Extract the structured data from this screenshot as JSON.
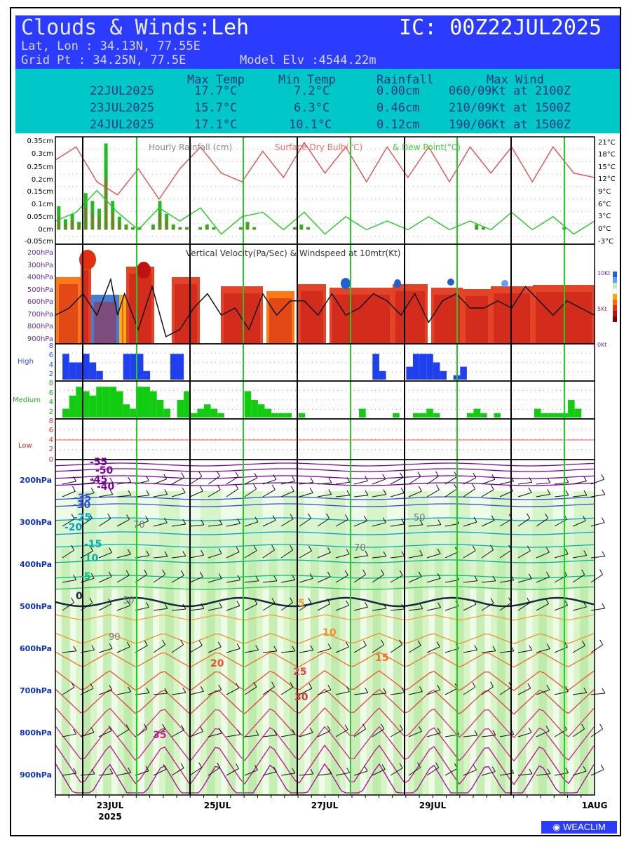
{
  "header": {
    "title_prefix": "Clouds & Winds:",
    "station": "Leh",
    "ic": "IC: 00Z22JUL2025",
    "latlon": "Lat, Lon : 34.13N, 77.55E",
    "gridpt": "Grid Pt  : 34.25N, 77.5E",
    "elev": "Model Elv :4544.22m"
  },
  "stats": {
    "headers": [
      "Max Temp",
      "Min Temp",
      "Rainfall",
      "Max Wind"
    ],
    "rows": [
      {
        "date": "22JUL2025",
        "max": "17.7°C",
        "min": "7.2°C",
        "rain": "0.00cm",
        "wind": "060/09Kt at 2100Z"
      },
      {
        "date": "23JUL2025",
        "max": "15.7°C",
        "min": "6.3°C",
        "rain": "0.46cm",
        "wind": "210/09Kt at 1500Z"
      },
      {
        "date": "24JUL2025",
        "max": "17.1°C",
        "min": "10.1°C",
        "rain": "0.12cm",
        "wind": "190/06Kt at 1500Z"
      }
    ]
  },
  "chart_data": [
    {
      "type": "bar+line",
      "title": "Hourly Rainfall (cm)",
      "title2": "Surface Dry Bulb(°C)",
      "title3": "& Dew Point(°C)",
      "left_ticks": [
        "0.35cm",
        "0.3cm",
        "0.25cm",
        "0.2cm",
        "0.15cm",
        "0.1cm",
        "0.05cm",
        "0cm",
        "-0.05cm"
      ],
      "right_ticks": [
        "21°C",
        "18°C",
        "15°C",
        "12°C",
        "9°C",
        "6°C",
        "3°C",
        "0°C",
        "-3°C"
      ],
      "ylim": [
        -0.05,
        0.35
      ],
      "y2lim": [
        -3,
        21
      ],
      "rain_x": [
        0,
        1,
        2,
        3,
        4,
        5,
        6,
        7,
        8,
        9,
        10,
        11,
        12,
        13,
        14,
        15,
        16,
        17,
        18,
        19,
        20,
        21,
        22,
        23,
        24,
        25,
        26,
        27,
        28,
        29,
        30,
        31,
        32,
        33,
        34,
        35,
        36,
        37,
        38,
        39,
        40,
        41,
        42,
        43,
        44,
        45,
        46,
        47,
        48,
        49,
        50,
        51,
        52,
        53,
        54,
        55,
        56,
        57,
        58,
        59,
        60,
        61,
        62,
        63,
        64,
        65,
        66,
        67,
        68,
        69,
        70,
        71,
        72,
        73,
        74,
        75,
        76,
        77,
        78,
        79
      ],
      "rain": [
        0.09,
        0.04,
        0.06,
        0.03,
        0.14,
        0.11,
        0.08,
        0.33,
        0.11,
        0.05,
        0.02,
        0.01,
        0.01,
        0.0,
        0.02,
        0.11,
        0.06,
        0.02,
        0.01,
        0.01,
        0.0,
        0.01,
        0.02,
        0.01,
        0.0,
        0.0,
        0.0,
        0.01,
        0.03,
        0.01,
        0.0,
        0.0,
        0.0,
        0.0,
        0.0,
        0.01,
        0.02,
        0.01,
        0.0,
        0.0,
        0.0,
        0.0,
        0.0,
        0.0,
        0.0,
        0.0,
        0.0,
        0.0,
        0.0,
        0.0,
        0.0,
        0.0,
        0.0,
        0.0,
        0.0,
        0.0,
        0.0,
        0.0,
        0.0,
        0.0,
        0.0,
        0.0,
        0.02,
        0.01,
        0.0,
        0.0,
        0.0,
        0.0,
        0.0,
        0.0,
        0.0,
        0.0,
        0.0,
        0.0,
        0.0,
        0.01,
        0.0,
        0.0,
        0.0,
        0.0
      ],
      "drybulb_x": [
        0,
        3,
        6,
        9,
        12,
        15,
        18,
        21,
        24,
        27,
        30,
        33,
        36,
        39,
        42,
        45,
        48,
        51,
        54,
        57,
        60,
        63,
        66,
        69,
        72,
        75,
        78
      ],
      "drybulb": [
        16,
        19,
        11,
        8,
        14,
        7,
        14,
        19,
        13,
        11,
        18,
        12,
        20,
        13,
        19,
        11,
        19,
        12,
        19,
        11,
        19,
        13,
        19,
        11,
        19,
        13,
        12
      ],
      "dewpoint_x": [
        0,
        3,
        6,
        9,
        12,
        15,
        18,
        21,
        24,
        27,
        30,
        33,
        36,
        39,
        42,
        45,
        48,
        51,
        54,
        57,
        60,
        63,
        66,
        69,
        72,
        75,
        78
      ],
      "dewpoint": [
        2,
        4,
        9,
        4,
        0,
        5,
        2,
        5,
        -1,
        3,
        4,
        0,
        4,
        -1,
        3,
        0,
        2,
        0,
        3,
        0,
        2,
        0,
        4,
        0,
        3,
        -1,
        2
      ]
    },
    {
      "type": "heatmap",
      "title": "Vertical Velocity(Pa/Sec) & Windspeed at 10mtr(Kt)",
      "yticks": [
        "200hPa",
        "300hPa",
        "400hPa",
        "500hPa",
        "600hPa",
        "700hPa",
        "800hPa",
        "900hPa"
      ],
      "right_ticks": [
        "10Kt",
        "5Kt",
        "0Kt"
      ],
      "windspeed_x": [
        0,
        2,
        4,
        6,
        8,
        9,
        10,
        12,
        14,
        16,
        18,
        20,
        22,
        24,
        26,
        28,
        30,
        32,
        34,
        36,
        38,
        40,
        42,
        44,
        46,
        48,
        50,
        52,
        54,
        56,
        58,
        60,
        62,
        64,
        66,
        68,
        70,
        72,
        74,
        76,
        78
      ],
      "windspeed": [
        4,
        5,
        7,
        4,
        9,
        4,
        7,
        2,
        8,
        1,
        2,
        5,
        7,
        4,
        5,
        2,
        7,
        4,
        6,
        6,
        4,
        7,
        4,
        5,
        7,
        6,
        4,
        7,
        3,
        6,
        7,
        5,
        5,
        6,
        5,
        8,
        6,
        4,
        6,
        5,
        4
      ]
    },
    {
      "type": "bar",
      "title": "High",
      "yticks": [
        "8",
        "6",
        "4",
        "2"
      ],
      "ylim": [
        0,
        8
      ],
      "values": [
        0,
        6,
        4,
        4,
        6,
        4,
        2,
        0,
        0,
        0,
        6,
        6,
        6,
        2,
        0,
        0,
        0,
        6,
        6,
        0,
        0,
        0,
        0,
        0,
        0,
        0,
        0,
        0,
        0,
        0,
        0,
        0,
        0,
        0,
        0,
        0,
        0,
        0,
        0,
        0,
        0,
        0,
        0,
        0,
        0,
        0,
        0,
        6,
        2,
        0,
        0,
        0,
        3,
        6,
        6,
        6,
        4,
        2,
        0,
        1,
        3,
        0,
        0,
        0,
        0,
        0,
        0,
        0,
        0,
        0,
        0,
        0,
        0,
        0,
        0,
        0,
        0,
        0,
        0,
        0
      ]
    },
    {
      "type": "bar",
      "title": "Medium",
      "yticks": [
        "8",
        "6",
        "4",
        "2"
      ],
      "ylim": [
        0,
        8
      ],
      "values": [
        0,
        2,
        5,
        7,
        6,
        5,
        7,
        7,
        7,
        6,
        3,
        2,
        7,
        7,
        6,
        4,
        2,
        0,
        4,
        6,
        1,
        2,
        3,
        2,
        1,
        0,
        0,
        0,
        6,
        4,
        3,
        2,
        1,
        1,
        1,
        0,
        1,
        0,
        0,
        0,
        0,
        0,
        0,
        0,
        0,
        2,
        0,
        0,
        0,
        0,
        1,
        0,
        0,
        1,
        1,
        2,
        1,
        0,
        0,
        0,
        0,
        1,
        2,
        1,
        0,
        1,
        0,
        0,
        0,
        0,
        0,
        2,
        1,
        1,
        1,
        1,
        4,
        2,
        0,
        0
      ]
    },
    {
      "type": "bar",
      "title": "Low",
      "yticks": [
        "8",
        "6",
        "4",
        "2",
        "0"
      ],
      "ylim": [
        0,
        8
      ],
      "values": []
    },
    {
      "type": "contour",
      "yticks": [
        "200hPa",
        "300hPa",
        "400hPa",
        "500hPa",
        "600hPa",
        "700hPa",
        "800hPa",
        "900hPa"
      ],
      "xticks": [
        "23JUL",
        "25JUL",
        "27JUL",
        "29JUL",
        "1AUG"
      ],
      "xtick_year": "2025",
      "temp_labels": [
        "-55",
        "-50",
        "-45",
        "-40",
        "-35",
        "-30",
        "-25",
        "-20",
        "-15",
        "-10",
        "-5",
        "0",
        "5",
        "10",
        "15",
        "20",
        "25",
        "30",
        "35"
      ],
      "rh_labels": [
        "50",
        "70",
        "90"
      ]
    }
  ],
  "logo": "WEACLIM"
}
